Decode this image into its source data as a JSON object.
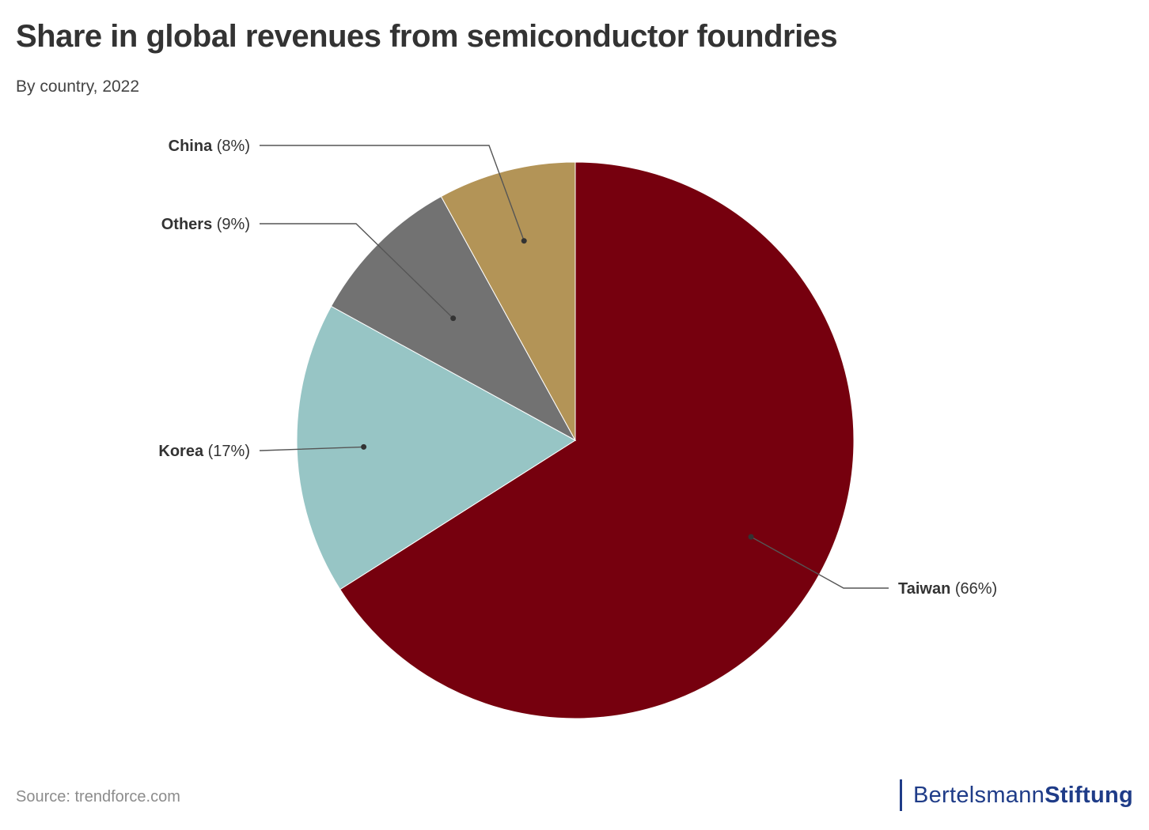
{
  "header": {
    "title": "Share in global revenues from semiconductor foundries",
    "subtitle": "By country, 2022"
  },
  "chart_data": {
    "type": "pie",
    "title": "Share in global revenues from semiconductor foundries",
    "subtitle": "By country, 2022",
    "slices": [
      {
        "label": "Taiwan",
        "value": 66,
        "value_label": "(66%)",
        "color": "#76000e"
      },
      {
        "label": "Korea",
        "value": 17,
        "value_label": "(17%)",
        "color": "#97c5c5"
      },
      {
        "label": "Others",
        "value": 9,
        "value_label": "(9%)",
        "color": "#727272"
      },
      {
        "label": "China",
        "value": 8,
        "value_label": "(8%)",
        "color": "#b39457"
      }
    ],
    "start": "12 o'clock, clockwise"
  },
  "footer": {
    "source": "Source: trendforce.com",
    "logo_part1": "Bertelsmann",
    "logo_part2": "Stiftung"
  },
  "colors": {
    "title": "#333333",
    "brand": "#1f3c88",
    "leader_line": "#555555"
  }
}
